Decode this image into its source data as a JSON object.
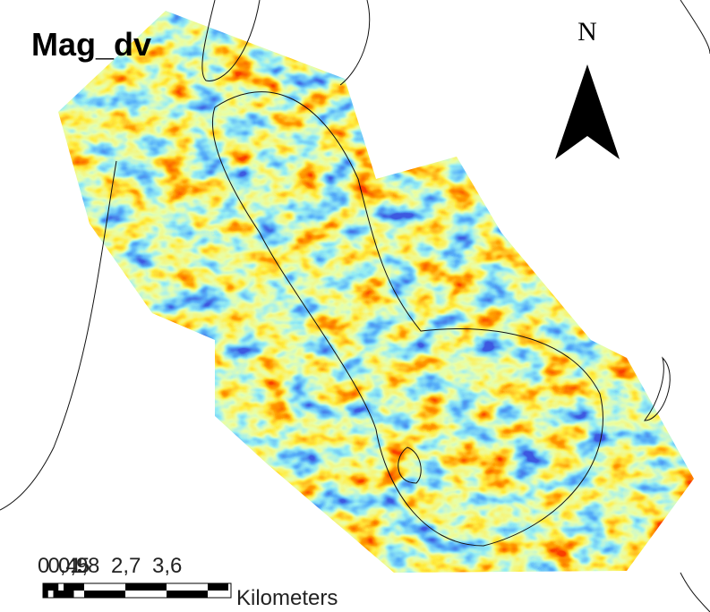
{
  "title": "Mag_dv",
  "north_arrow": {
    "label": "N"
  },
  "scale_bar": {
    "labels": [
      "0",
      "0,45",
      "0,9",
      "1,8",
      "2,7",
      "3,6"
    ],
    "unit": "Kilometers"
  }
}
